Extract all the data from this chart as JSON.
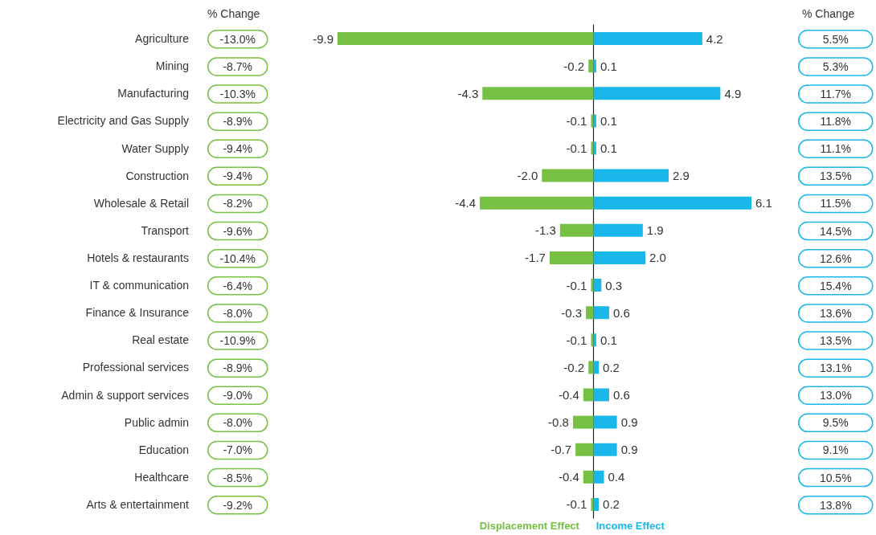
{
  "chart_data": {
    "type": "bar",
    "orientation": "horizontal",
    "stacked": true,
    "categories": [
      "Agriculture",
      "Mining",
      "Manufacturing",
      "Electricity and Gas Supply",
      "Water Supply",
      "Construction",
      "Wholesale & Retail",
      "Transport",
      "Hotels & restaurants",
      "IT & communication",
      "Finance & Insurance",
      "Real estate",
      "Professional services",
      "Admin & support services",
      "Public admin",
      "Education",
      "Healthcare",
      "Arts & entertainment"
    ],
    "series": [
      {
        "name": "Displacement Effect",
        "color": "#76c043",
        "values": [
          -9.9,
          -0.2,
          -4.3,
          -0.1,
          -0.1,
          -2.0,
          -4.4,
          -1.3,
          -1.7,
          -0.1,
          -0.3,
          -0.1,
          -0.2,
          -0.4,
          -0.8,
          -0.7,
          -0.4,
          -0.1
        ],
        "value_labels": [
          "-9.9",
          "-0.2",
          "-4.3",
          "-0.1",
          "-0.1",
          "-2.0",
          "-4.4",
          "-1.3",
          "-1.7",
          "-0.1",
          "-0.3",
          "-0.1",
          "-0.2",
          "-0.4",
          "-0.8",
          "-0.7",
          "-0.4",
          "-0.1"
        ]
      },
      {
        "name": "Income Effect",
        "color": "#1ab7ea",
        "values": [
          4.2,
          0.1,
          4.9,
          0.1,
          0.1,
          2.9,
          6.1,
          1.9,
          2.0,
          0.3,
          0.6,
          0.1,
          0.2,
          0.6,
          0.9,
          0.9,
          0.4,
          0.2
        ],
        "value_labels": [
          "4.2",
          "0.1",
          "4.9",
          "0.1",
          "0.1",
          "2.9",
          "6.1",
          "1.9",
          "2.0",
          "0.3",
          "0.6",
          "0.1",
          "0.2",
          "0.6",
          "0.9",
          "0.9",
          "0.4",
          "0.2"
        ]
      }
    ],
    "annotations": [
      "% Change",
      "-13.0%",
      "-8.7%",
      "-10.3%",
      "-8.9%",
      "-9.4%",
      "-9.4%",
      "-8.2%",
      "-9.6%",
      "-10.4%",
      "-6.4%",
      "-8.0%",
      "-10.9%",
      "-8.9%",
      "-9.0%",
      "-8.0%",
      "-7.0%",
      "-8.5%",
      "-9.2%",
      "% Change",
      "5.5%",
      "5.3%",
      "11.7%",
      "11.8%",
      "11.1%",
      "13.5%",
      "11.5%",
      "14.5%",
      "12.6%",
      "15.4%",
      "13.6%",
      "13.5%",
      "13.1%",
      "13.0%",
      "9.5%",
      "9.1%",
      "10.5%",
      "13.8%"
    ],
    "legend": false
  }
}
